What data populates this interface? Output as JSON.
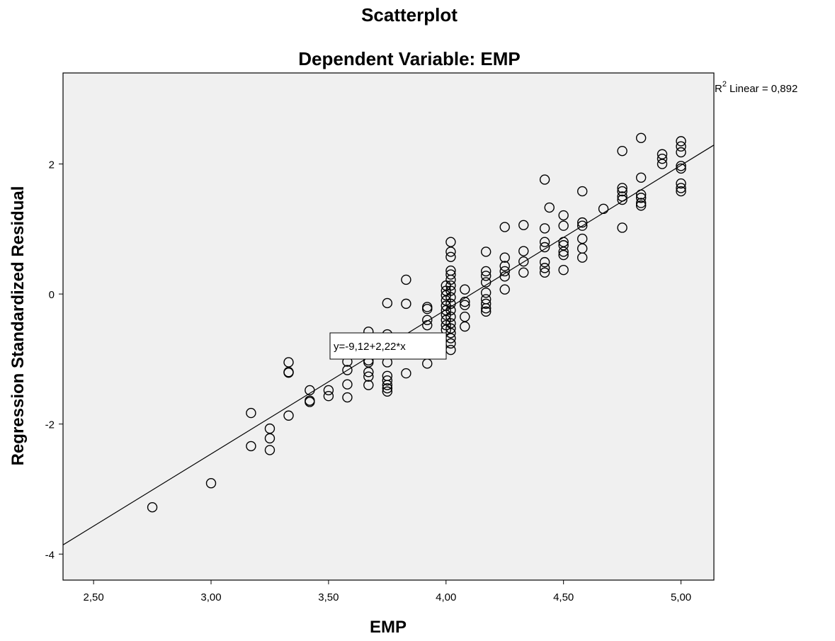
{
  "chart_data": {
    "type": "scatter",
    "title": "Scatterplot",
    "subtitle": "Dependent Variable: EMP",
    "xlabel": "EMP",
    "ylabel": "Regression Standardized Residual",
    "xlim": [
      2.37,
      5.14
    ],
    "ylim": [
      -4.4,
      3.4
    ],
    "x_ticks": [
      2.5,
      3.0,
      3.5,
      4.0,
      4.5,
      5.0
    ],
    "x_tick_labels": [
      "2,50",
      "3,00",
      "3,50",
      "4,00",
      "4,50",
      "5,00"
    ],
    "y_ticks": [
      -4,
      -2,
      0,
      2
    ],
    "y_tick_labels": [
      "-4",
      "-2",
      "0",
      "2"
    ],
    "grid": false,
    "background_color": "#f0f0f0",
    "marker": "hollow-circle",
    "r2_label": "Linear = 0,892",
    "r2_symbol": "R",
    "r2_superscript": "2",
    "fit_line": {
      "intercept": -9.12,
      "slope": 2.22,
      "label": "y=-9,12+2,22*x"
    },
    "points": [
      [
        2.75,
        -3.28
      ],
      [
        3.0,
        -2.91
      ],
      [
        3.17,
        -1.83
      ],
      [
        3.17,
        -2.34
      ],
      [
        3.25,
        -2.07
      ],
      [
        3.25,
        -2.22
      ],
      [
        3.25,
        -2.4
      ],
      [
        3.33,
        -1.05
      ],
      [
        3.33,
        -1.2
      ],
      [
        3.33,
        -1.21
      ],
      [
        3.33,
        -1.87
      ],
      [
        3.42,
        -1.48
      ],
      [
        3.42,
        -1.64
      ],
      [
        3.42,
        -1.66
      ],
      [
        3.5,
        -1.48
      ],
      [
        3.5,
        -1.57
      ],
      [
        3.58,
        -0.88
      ],
      [
        3.58,
        -1.04
      ],
      [
        3.58,
        -1.17
      ],
      [
        3.58,
        -1.39
      ],
      [
        3.58,
        -1.59
      ],
      [
        3.67,
        -0.58
      ],
      [
        3.67,
        -0.72
      ],
      [
        3.67,
        -0.85
      ],
      [
        3.67,
        -1.02
      ],
      [
        3.67,
        -1.05
      ],
      [
        3.67,
        -1.2
      ],
      [
        3.67,
        -1.27
      ],
      [
        3.67,
        -1.4
      ],
      [
        3.75,
        -0.14
      ],
      [
        3.75,
        -0.62
      ],
      [
        3.75,
        -0.9
      ],
      [
        3.75,
        -1.05
      ],
      [
        3.75,
        -1.26
      ],
      [
        3.75,
        -1.33
      ],
      [
        3.75,
        -1.4
      ],
      [
        3.75,
        -1.45
      ],
      [
        3.75,
        -1.5
      ],
      [
        3.83,
        0.22
      ],
      [
        3.83,
        -0.15
      ],
      [
        3.83,
        -1.22
      ],
      [
        3.92,
        -0.2
      ],
      [
        3.92,
        -0.23
      ],
      [
        3.92,
        -0.4
      ],
      [
        3.92,
        -0.48
      ],
      [
        3.92,
        -0.78
      ],
      [
        3.92,
        -1.07
      ],
      [
        4.0,
        0.13
      ],
      [
        4.0,
        0.05
      ],
      [
        4.0,
        -0.02
      ],
      [
        4.0,
        -0.1
      ],
      [
        4.0,
        -0.18
      ],
      [
        4.0,
        -0.25
      ],
      [
        4.0,
        -0.32
      ],
      [
        4.0,
        -0.4
      ],
      [
        4.0,
        -0.48
      ],
      [
        4.0,
        -0.55
      ],
      [
        4.02,
        0.8
      ],
      [
        4.02,
        0.65
      ],
      [
        4.02,
        0.57
      ],
      [
        4.02,
        0.36
      ],
      [
        4.02,
        0.3
      ],
      [
        4.02,
        0.22
      ],
      [
        4.02,
        0.13
      ],
      [
        4.02,
        0.05
      ],
      [
        4.02,
        -0.05
      ],
      [
        4.02,
        -0.15
      ],
      [
        4.02,
        -0.25
      ],
      [
        4.02,
        -0.35
      ],
      [
        4.02,
        -0.45
      ],
      [
        4.02,
        -0.53
      ],
      [
        4.02,
        -0.6
      ],
      [
        4.02,
        -0.68
      ],
      [
        4.02,
        -0.76
      ],
      [
        4.02,
        -0.86
      ],
      [
        4.08,
        0.07
      ],
      [
        4.08,
        -0.12
      ],
      [
        4.08,
        -0.17
      ],
      [
        4.08,
        -0.35
      ],
      [
        4.08,
        -0.5
      ],
      [
        4.17,
        0.65
      ],
      [
        4.17,
        0.35
      ],
      [
        4.17,
        0.28
      ],
      [
        4.17,
        0.18
      ],
      [
        4.17,
        0.02
      ],
      [
        4.17,
        -0.08
      ],
      [
        4.17,
        -0.15
      ],
      [
        4.17,
        -0.22
      ],
      [
        4.17,
        -0.27
      ],
      [
        4.25,
        1.03
      ],
      [
        4.25,
        0.56
      ],
      [
        4.25,
        0.43
      ],
      [
        4.25,
        0.35
      ],
      [
        4.25,
        0.27
      ],
      [
        4.25,
        0.07
      ],
      [
        4.33,
        1.06
      ],
      [
        4.33,
        0.66
      ],
      [
        4.33,
        0.5
      ],
      [
        4.33,
        0.33
      ],
      [
        4.42,
        1.76
      ],
      [
        4.42,
        1.01
      ],
      [
        4.42,
        0.8
      ],
      [
        4.42,
        0.72
      ],
      [
        4.42,
        0.49
      ],
      [
        4.42,
        0.4
      ],
      [
        4.42,
        0.33
      ],
      [
        4.44,
        1.33
      ],
      [
        4.5,
        1.21
      ],
      [
        4.5,
        1.05
      ],
      [
        4.5,
        0.8
      ],
      [
        4.5,
        0.75
      ],
      [
        4.5,
        0.65
      ],
      [
        4.5,
        0.6
      ],
      [
        4.5,
        0.37
      ],
      [
        4.58,
        1.58
      ],
      [
        4.58,
        1.1
      ],
      [
        4.58,
        1.05
      ],
      [
        4.58,
        0.85
      ],
      [
        4.58,
        0.7
      ],
      [
        4.58,
        0.56
      ],
      [
        4.67,
        1.31
      ],
      [
        4.75,
        2.2
      ],
      [
        4.75,
        1.63
      ],
      [
        4.75,
        1.58
      ],
      [
        4.75,
        1.5
      ],
      [
        4.75,
        1.45
      ],
      [
        4.75,
        1.02
      ],
      [
        4.83,
        2.4
      ],
      [
        4.83,
        1.79
      ],
      [
        4.83,
        1.53
      ],
      [
        4.83,
        1.48
      ],
      [
        4.83,
        1.4
      ],
      [
        4.83,
        1.36
      ],
      [
        4.92,
        2.15
      ],
      [
        4.92,
        2.08
      ],
      [
        4.92,
        2.0
      ],
      [
        5.0,
        2.35
      ],
      [
        5.0,
        2.27
      ],
      [
        5.0,
        2.18
      ],
      [
        5.0,
        1.97
      ],
      [
        5.0,
        1.93
      ],
      [
        5.0,
        1.7
      ],
      [
        5.0,
        1.63
      ],
      [
        5.0,
        1.58
      ]
    ]
  }
}
